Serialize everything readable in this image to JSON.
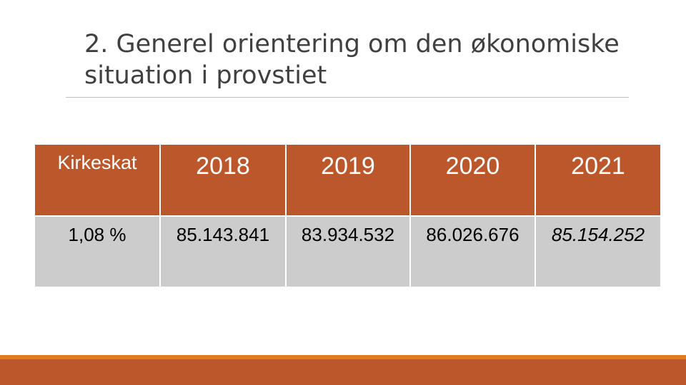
{
  "slide": {
    "title_line1": "2. Generel orientering om den økonomiske",
    "title_line2": "situation i provstiet"
  },
  "table": {
    "header": {
      "label": "Kirkeskat",
      "years": [
        "2018",
        "2019",
        "2020",
        "2021"
      ]
    },
    "row": {
      "label": "1,08 %",
      "values": [
        "85.143.841",
        "83.934.532",
        "86.026.676",
        "85.154.252"
      ]
    }
  },
  "colors": {
    "header_fill": "#bc572b",
    "row_fill": "#cccccc",
    "accent_bar": "#e07b20"
  }
}
